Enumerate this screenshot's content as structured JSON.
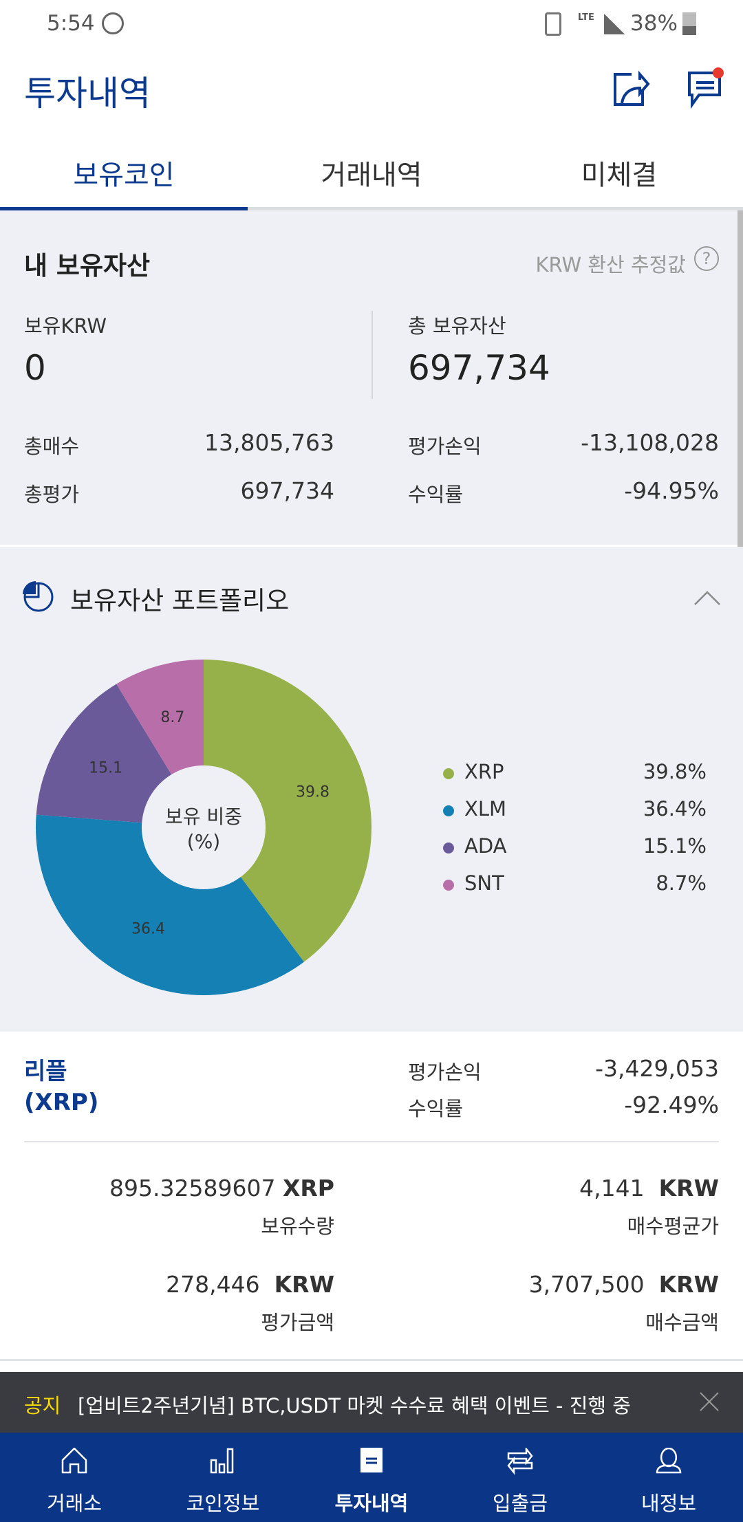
{
  "status_bar": {
    "time": "5:54",
    "battery": "38%",
    "network": "LTE"
  },
  "header": {
    "title": "투자내역",
    "share_icon": "share-icon",
    "chat_icon": "chat-icon",
    "badge_color": "#e8392f"
  },
  "tabs": [
    {
      "label": "보유코인",
      "active": true
    },
    {
      "label": "거래내역",
      "active": false
    },
    {
      "label": "미체결",
      "active": false
    }
  ],
  "assets": {
    "title": "내 보유자산",
    "note": "KRW 환산 추정값",
    "help": "?",
    "krw_label": "보유KRW",
    "krw_value": "0",
    "total_label": "총 보유자산",
    "total_value": "697,734",
    "rows": [
      {
        "label": "총매수",
        "value": "13,805,763",
        "label2": "평가손익",
        "value2": "-13,108,028"
      },
      {
        "label": "총평가",
        "value": "697,734",
        "label2": "수익률",
        "value2": "-94.95%"
      }
    ]
  },
  "portfolio": {
    "title": "보유자산 포트폴리오",
    "center_label_1": "보유 비중",
    "center_label_2": "(%)",
    "slices": [
      {
        "name": "XRP",
        "value": 39.8,
        "label": "39.8",
        "pct": "39.8%",
        "color": "#97b14a"
      },
      {
        "name": "XLM",
        "value": 36.4,
        "label": "36.4",
        "pct": "36.4%",
        "color": "#1480b3"
      },
      {
        "name": "ADA",
        "value": 15.1,
        "label": "15.1",
        "pct": "15.1%",
        "color": "#6b5a9a"
      },
      {
        "name": "SNT",
        "value": 8.7,
        "label": "8.7",
        "pct": "8.7%",
        "color": "#b86ea8"
      }
    ]
  },
  "chart_data": {
    "type": "pie",
    "categories": [
      "XRP",
      "XLM",
      "ADA",
      "SNT"
    ],
    "values": [
      39.8,
      36.4,
      15.1,
      8.7
    ],
    "legend": "right"
  },
  "coin": {
    "name": "리플",
    "symbol": "(XRP)",
    "pl_label": "평가손익",
    "pl_value": "-3,429,053",
    "rr_label": "수익률",
    "rr_value": "-92.49%",
    "cells": [
      {
        "value": "895.32589607",
        "unit": "XRP",
        "label": "보유수량"
      },
      {
        "value": "4,141",
        "unit": "KRW",
        "label": "매수평균가"
      },
      {
        "value": "278,446",
        "unit": "KRW",
        "label": "평가금액"
      },
      {
        "value": "3,707,500",
        "unit": "KRW",
        "label": "매수금액"
      }
    ]
  },
  "notice": {
    "tag": "공지",
    "text": "[업비트2주년기념] BTC,USDT 마켓 수수료 혜택 이벤트 - 진행 중"
  },
  "nav": [
    {
      "label": "거래소",
      "icon": "home-icon"
    },
    {
      "label": "코인정보",
      "icon": "bar-chart-icon"
    },
    {
      "label": "투자내역",
      "icon": "document-icon",
      "active": true
    },
    {
      "label": "입출금",
      "icon": "transfer-icon"
    },
    {
      "label": "내정보",
      "icon": "user-icon"
    }
  ]
}
